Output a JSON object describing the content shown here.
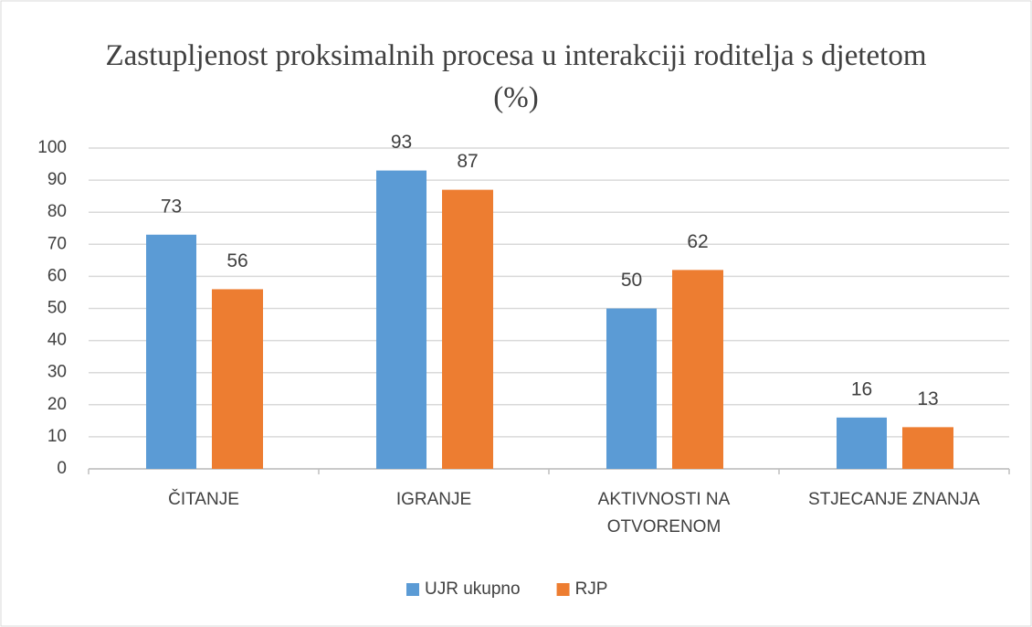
{
  "chart_data": {
    "type": "bar",
    "title": "Zastupljenost proksimalnih procesa u interakciji roditelja s djetetom (%)",
    "categories": [
      "ČITANJE",
      "IGRANJE",
      "AKTIVNOSTI NA OTVORENOM",
      "STJECANJE ZNANJA"
    ],
    "series": [
      {
        "name": "UJR ukupno",
        "color": "#5b9bd5",
        "values": [
          73,
          93,
          50,
          16
        ]
      },
      {
        "name": "RJP",
        "color": "#ed7d31",
        "values": [
          56,
          87,
          62,
          13
        ]
      }
    ],
    "ylim": [
      0,
      100
    ],
    "yticks": [
      0,
      10,
      20,
      30,
      40,
      50,
      60,
      70,
      80,
      90,
      100
    ],
    "grid": true,
    "legend": "bottom"
  }
}
